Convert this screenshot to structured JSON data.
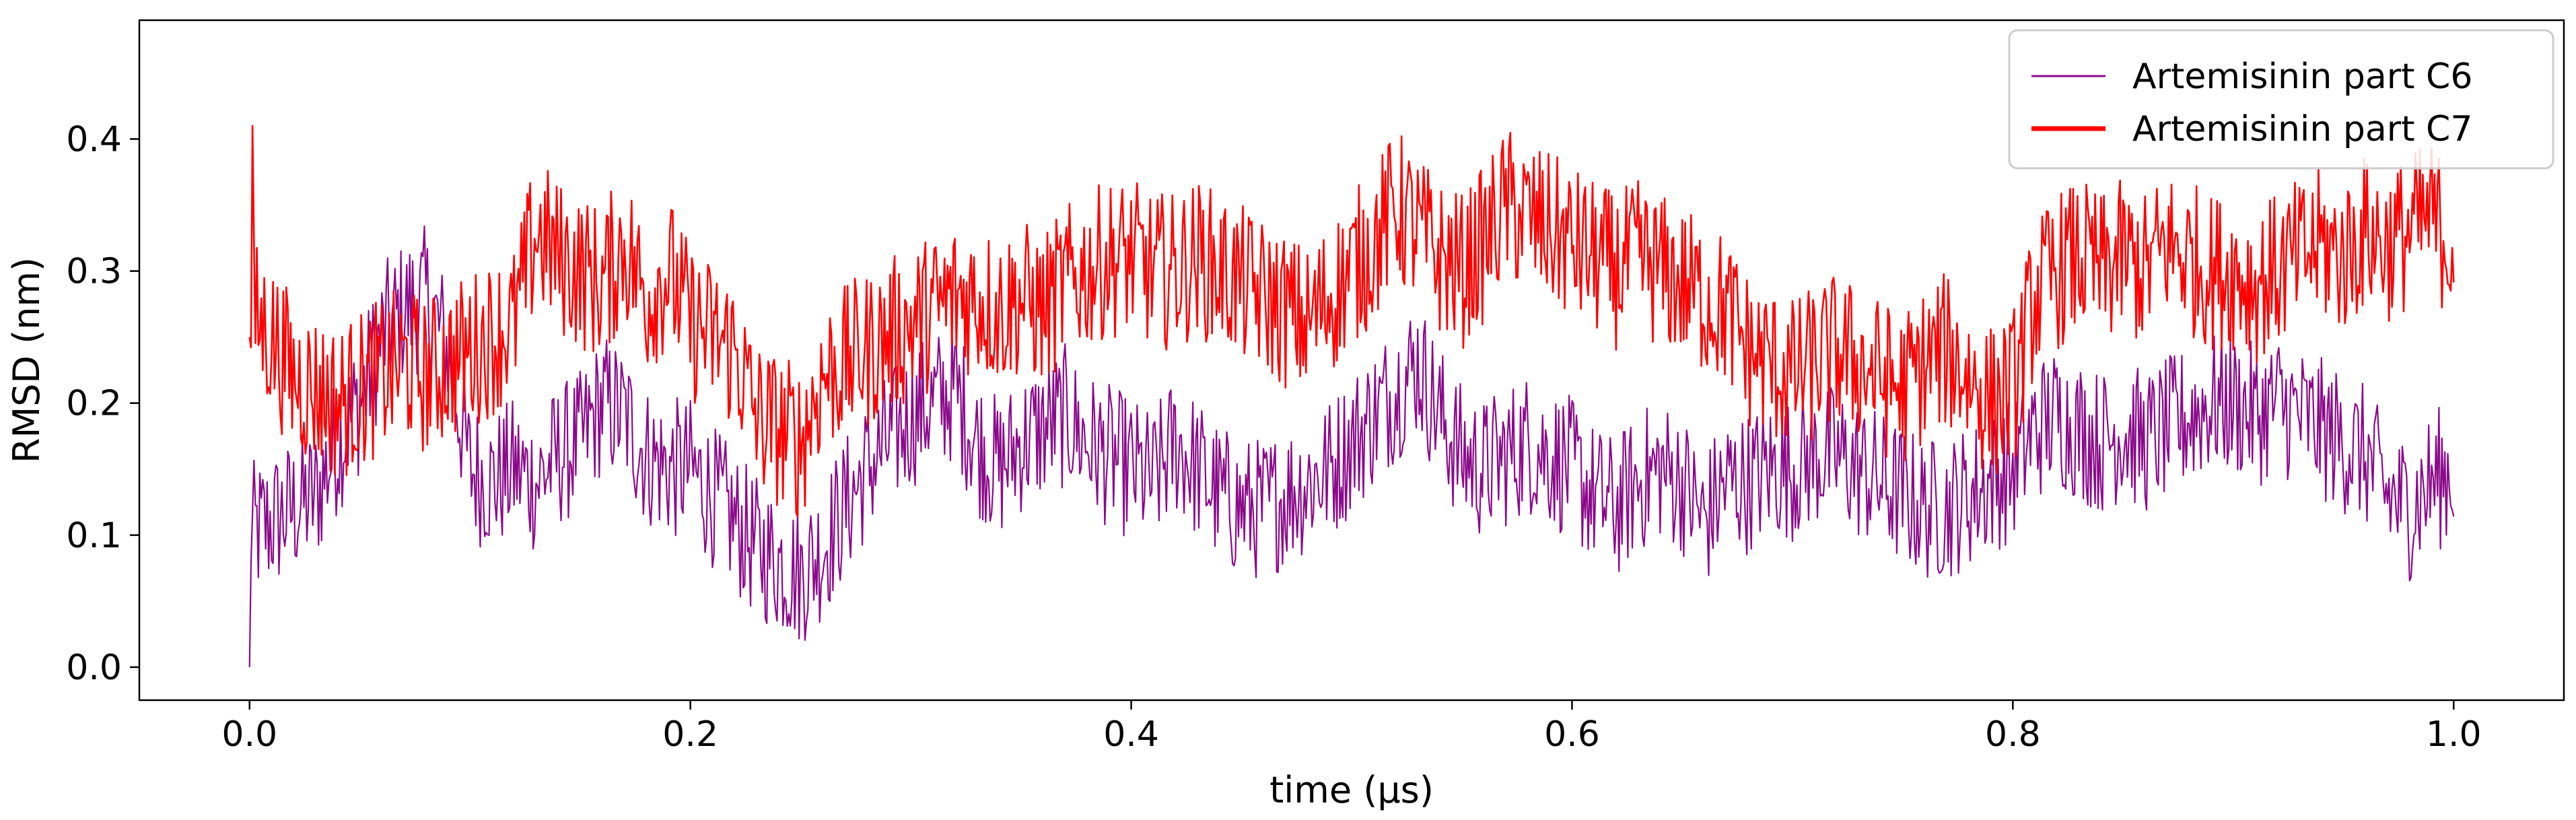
{
  "chart_data": {
    "type": "line",
    "title": "",
    "xlabel": "time (µs)",
    "ylabel": "RMSD (nm)",
    "xlim": [
      -0.05,
      1.05
    ],
    "ylim": [
      -0.025,
      0.49
    ],
    "xticks": [
      "0.0",
      "0.2",
      "0.4",
      "0.6",
      "0.8",
      "1.0"
    ],
    "yticks": [
      "0.0",
      "0.1",
      "0.2",
      "0.3",
      "0.4"
    ],
    "grid": false,
    "legend_position": "top-right",
    "series": [
      {
        "name": "Artemisinin part C6",
        "color": "#8b0a8b",
        "x": [
          0.0,
          0.01,
          0.02,
          0.03,
          0.04,
          0.05,
          0.06,
          0.07,
          0.08,
          0.09,
          0.1,
          0.11,
          0.12,
          0.13,
          0.14,
          0.15,
          0.16,
          0.17,
          0.18,
          0.19,
          0.2,
          0.21,
          0.22,
          0.23,
          0.24,
          0.25,
          0.26,
          0.27,
          0.28,
          0.29,
          0.3,
          0.31,
          0.32,
          0.33,
          0.34,
          0.35,
          0.36,
          0.37,
          0.38,
          0.39,
          0.4,
          0.41,
          0.42,
          0.43,
          0.44,
          0.45,
          0.46,
          0.47,
          0.48,
          0.49,
          0.5,
          0.51,
          0.52,
          0.53,
          0.54,
          0.55,
          0.56,
          0.57,
          0.58,
          0.59,
          0.6,
          0.61,
          0.62,
          0.63,
          0.64,
          0.65,
          0.66,
          0.67,
          0.68,
          0.69,
          0.7,
          0.71,
          0.72,
          0.73,
          0.74,
          0.75,
          0.76,
          0.77,
          0.78,
          0.79,
          0.8,
          0.81,
          0.82,
          0.83,
          0.84,
          0.85,
          0.86,
          0.87,
          0.88,
          0.89,
          0.9,
          0.91,
          0.92,
          0.93,
          0.94,
          0.95,
          0.96,
          0.97,
          0.98,
          0.99,
          1.0
        ],
        "y": [
          0.1,
          0.11,
          0.12,
          0.13,
          0.17,
          0.2,
          0.25,
          0.27,
          0.28,
          0.24,
          0.15,
          0.14,
          0.15,
          0.14,
          0.16,
          0.17,
          0.2,
          0.19,
          0.16,
          0.15,
          0.15,
          0.13,
          0.11,
          0.09,
          0.08,
          0.07,
          0.09,
          0.12,
          0.15,
          0.17,
          0.19,
          0.2,
          0.21,
          0.17,
          0.15,
          0.17,
          0.18,
          0.19,
          0.17,
          0.16,
          0.15,
          0.14,
          0.17,
          0.15,
          0.13,
          0.12,
          0.12,
          0.13,
          0.14,
          0.15,
          0.17,
          0.19,
          0.21,
          0.23,
          0.19,
          0.16,
          0.15,
          0.16,
          0.17,
          0.16,
          0.15,
          0.13,
          0.12,
          0.14,
          0.15,
          0.14,
          0.11,
          0.14,
          0.14,
          0.15,
          0.15,
          0.16,
          0.16,
          0.15,
          0.14,
          0.13,
          0.12,
          0.12,
          0.13,
          0.14,
          0.15,
          0.18,
          0.19,
          0.18,
          0.17,
          0.18,
          0.17,
          0.18,
          0.19,
          0.2,
          0.2,
          0.19,
          0.2,
          0.19,
          0.18,
          0.17,
          0.16,
          0.13,
          0.12,
          0.14,
          0.15
        ]
      },
      {
        "name": "Artemisinin part C7",
        "color": "#ff0000",
        "x": [
          0.0,
          0.01,
          0.02,
          0.03,
          0.04,
          0.05,
          0.06,
          0.07,
          0.08,
          0.09,
          0.1,
          0.11,
          0.12,
          0.13,
          0.14,
          0.15,
          0.16,
          0.17,
          0.18,
          0.19,
          0.2,
          0.21,
          0.22,
          0.23,
          0.24,
          0.25,
          0.26,
          0.27,
          0.28,
          0.29,
          0.3,
          0.31,
          0.32,
          0.33,
          0.34,
          0.35,
          0.36,
          0.37,
          0.38,
          0.39,
          0.4,
          0.41,
          0.42,
          0.43,
          0.44,
          0.45,
          0.46,
          0.47,
          0.48,
          0.49,
          0.5,
          0.51,
          0.52,
          0.53,
          0.54,
          0.55,
          0.56,
          0.57,
          0.58,
          0.59,
          0.6,
          0.61,
          0.62,
          0.63,
          0.64,
          0.65,
          0.66,
          0.67,
          0.68,
          0.69,
          0.7,
          0.71,
          0.72,
          0.73,
          0.74,
          0.75,
          0.76,
          0.77,
          0.78,
          0.79,
          0.8,
          0.81,
          0.82,
          0.83,
          0.84,
          0.85,
          0.86,
          0.87,
          0.88,
          0.89,
          0.9,
          0.91,
          0.92,
          0.93,
          0.94,
          0.95,
          0.96,
          0.97,
          0.98,
          0.99,
          1.0
        ],
        "y": [
          0.27,
          0.25,
          0.22,
          0.21,
          0.2,
          0.21,
          0.22,
          0.23,
          0.22,
          0.23,
          0.24,
          0.25,
          0.26,
          0.33,
          0.31,
          0.3,
          0.29,
          0.32,
          0.28,
          0.3,
          0.26,
          0.25,
          0.24,
          0.19,
          0.18,
          0.17,
          0.22,
          0.23,
          0.24,
          0.25,
          0.26,
          0.27,
          0.28,
          0.28,
          0.27,
          0.28,
          0.27,
          0.29,
          0.3,
          0.31,
          0.31,
          0.3,
          0.3,
          0.31,
          0.3,
          0.29,
          0.28,
          0.27,
          0.26,
          0.28,
          0.3,
          0.32,
          0.35,
          0.33,
          0.31,
          0.3,
          0.32,
          0.35,
          0.34,
          0.33,
          0.32,
          0.31,
          0.3,
          0.31,
          0.3,
          0.29,
          0.28,
          0.27,
          0.24,
          0.23,
          0.22,
          0.23,
          0.24,
          0.23,
          0.22,
          0.21,
          0.23,
          0.24,
          0.22,
          0.2,
          0.21,
          0.28,
          0.3,
          0.31,
          0.3,
          0.31,
          0.3,
          0.32,
          0.31,
          0.3,
          0.3,
          0.29,
          0.3,
          0.31,
          0.32,
          0.31,
          0.33,
          0.32,
          0.33,
          0.34,
          0.32
        ]
      }
    ]
  }
}
